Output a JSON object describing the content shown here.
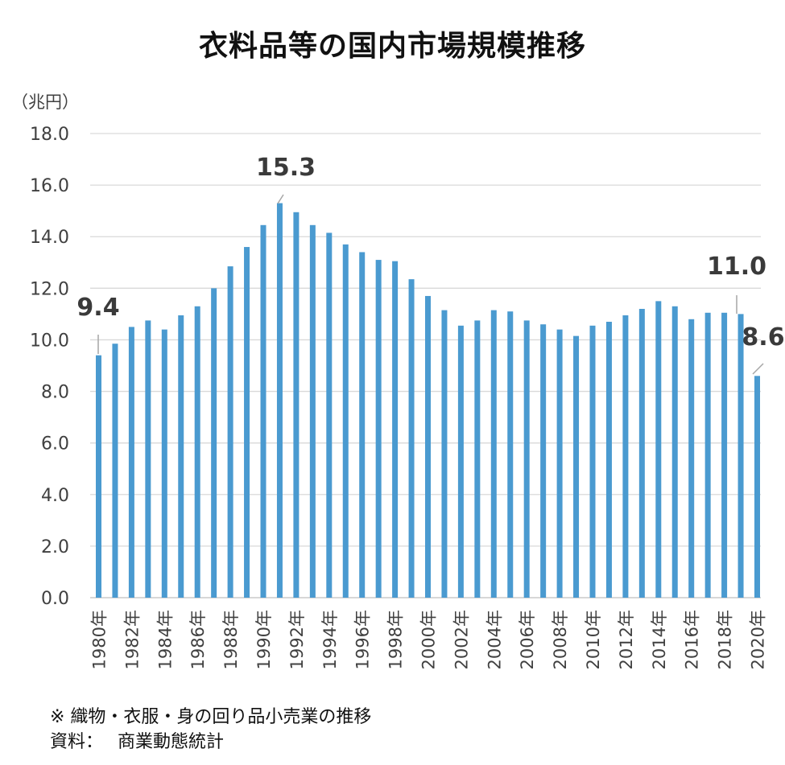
{
  "chart_data": {
    "type": "bar",
    "title": "衣料品等の国内市場規模推移",
    "unit_label": "（兆円）",
    "ylim": [
      0,
      18
    ],
    "yticks": [
      "0.0",
      "2.0",
      "4.0",
      "6.0",
      "8.0",
      "10.0",
      "12.0",
      "14.0",
      "16.0",
      "18.0"
    ],
    "grid": true,
    "bar_color": "#4a9ad0",
    "categories": [
      "1980年",
      "1981年",
      "1982年",
      "1983年",
      "1984年",
      "1985年",
      "1986年",
      "1987年",
      "1988年",
      "1989年",
      "1990年",
      "1991年",
      "1992年",
      "1993年",
      "1994年",
      "1995年",
      "1996年",
      "1997年",
      "1998年",
      "1999年",
      "2000年",
      "2001年",
      "2002年",
      "2003年",
      "2004年",
      "2005年",
      "2006年",
      "2007年",
      "2008年",
      "2009年",
      "2010年",
      "2011年",
      "2012年",
      "2013年",
      "2014年",
      "2015年",
      "2016年",
      "2017年",
      "2018年",
      "2019年",
      "2020年"
    ],
    "x_tick_labels": [
      "1980年",
      "1982年",
      "1984年",
      "1986年",
      "1988年",
      "1990年",
      "1992年",
      "1994年",
      "1996年",
      "1998年",
      "2000年",
      "2002年",
      "2004年",
      "2006年",
      "2008年",
      "2010年",
      "2012年",
      "2014年",
      "2016年",
      "2018年",
      "2020年"
    ],
    "values": [
      9.4,
      9.85,
      10.5,
      10.75,
      10.4,
      10.95,
      11.3,
      12.0,
      12.85,
      13.6,
      14.45,
      15.3,
      14.95,
      14.45,
      14.15,
      13.7,
      13.4,
      13.1,
      13.05,
      12.35,
      11.7,
      11.15,
      10.55,
      10.75,
      11.15,
      11.1,
      10.75,
      10.6,
      10.4,
      10.15,
      10.55,
      10.7,
      10.95,
      11.2,
      11.5,
      11.3,
      10.8,
      11.05,
      11.05,
      11.0,
      8.6
    ],
    "data_labels": [
      {
        "category": "1980年",
        "text": "9.4"
      },
      {
        "category": "1991年",
        "text": "15.3"
      },
      {
        "category": "2019年",
        "text": "11.0"
      },
      {
        "category": "2020年",
        "text": "8.6"
      }
    ]
  },
  "notes": {
    "line1": "※ 織物・衣服・身の回り品小売業の推移",
    "line2": "資料：　 商業動態統計"
  }
}
